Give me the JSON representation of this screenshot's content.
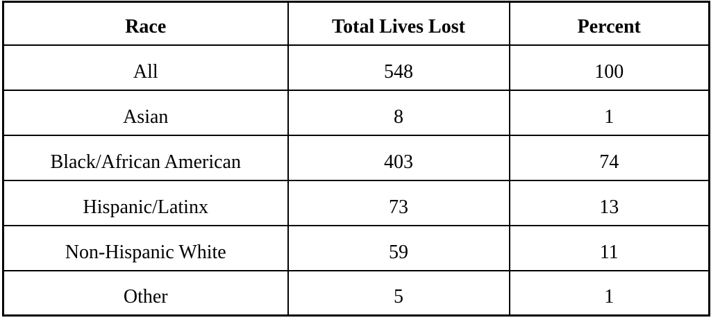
{
  "table": {
    "columns": [
      "Race",
      "Total Lives Lost",
      "Percent"
    ],
    "rows": [
      {
        "race": "All",
        "total": "548",
        "percent": "100"
      },
      {
        "race": "Asian",
        "total": "8",
        "percent": "1"
      },
      {
        "race": "Black/African American",
        "total": "403",
        "percent": "74"
      },
      {
        "race": "Hispanic/Latinx",
        "total": "73",
        "percent": "13"
      },
      {
        "race": "Non-Hispanic White",
        "total": "59",
        "percent": "11"
      },
      {
        "race": "Other",
        "total": "5",
        "percent": "1"
      }
    ]
  },
  "chart_data": {
    "type": "table",
    "title": "",
    "columns": [
      "Race",
      "Total Lives Lost",
      "Percent"
    ],
    "rows": [
      [
        "All",
        548,
        100
      ],
      [
        "Asian",
        8,
        1
      ],
      [
        "Black/African American",
        403,
        74
      ],
      [
        "Hispanic/Latinx",
        73,
        13
      ],
      [
        "Non-Hispanic White",
        59,
        11
      ],
      [
        "Other",
        5,
        1
      ]
    ]
  },
  "colors": {
    "border": "#000000",
    "text": "#000000",
    "background": "#ffffff"
  }
}
